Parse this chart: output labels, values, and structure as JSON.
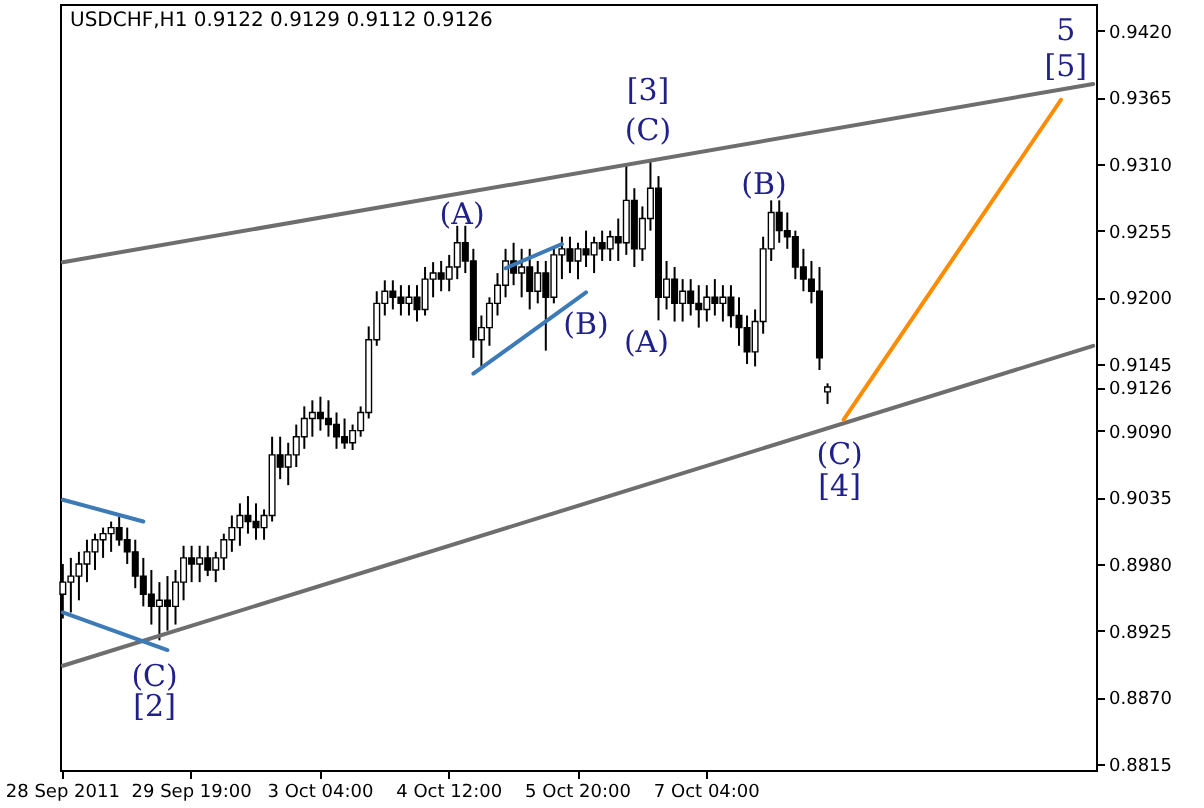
{
  "chart_data": {
    "type": "candlestick",
    "title": "USDCHF,H1  0.9122 0.9129 0.9112 0.9126",
    "categories": [
      "28 Sep 2011",
      null,
      null,
      null,
      null,
      null,
      null,
      null,
      null,
      null,
      null,
      null,
      null,
      null,
      null,
      null,
      "29 Sep 19:00",
      null,
      null,
      null,
      null,
      null,
      null,
      null,
      null,
      null,
      null,
      null,
      null,
      null,
      null,
      null,
      "3 Oct 04:00",
      null,
      null,
      null,
      null,
      null,
      null,
      null,
      null,
      null,
      null,
      null,
      null,
      null,
      null,
      null,
      "4 Oct 12:00",
      null,
      null,
      null,
      null,
      null,
      null,
      null,
      null,
      null,
      null,
      null,
      null,
      null,
      null,
      null,
      "5 Oct 20:00",
      null,
      null,
      null,
      null,
      null,
      null,
      null,
      null,
      null,
      null,
      null,
      null,
      null,
      null,
      null,
      "7 Oct 04:00",
      null,
      null,
      null,
      null,
      null,
      null,
      null,
      null,
      null,
      null,
      null,
      null,
      null,
      null,
      null,
      null,
      null,
      null,
      null,
      null,
      null,
      null,
      null,
      null,
      null,
      null,
      null,
      null,
      null,
      null,
      null,
      null,
      null,
      null,
      null,
      null,
      null,
      null,
      null,
      null,
      null,
      null,
      null,
      null,
      null,
      null,
      null,
      null
    ],
    "ohlc": [
      [
        0.8955,
        0.898,
        0.8935,
        0.8965
      ],
      [
        0.8965,
        0.8985,
        0.894,
        0.897
      ],
      [
        0.897,
        0.899,
        0.895,
        0.898
      ],
      [
        0.898,
        0.9,
        0.8965,
        0.899
      ],
      [
        0.899,
        0.9005,
        0.8975,
        0.9
      ],
      [
        0.9,
        0.901,
        0.8985,
        0.9005
      ],
      [
        0.9005,
        0.9015,
        0.899,
        0.901
      ],
      [
        0.901,
        0.902,
        0.8995,
        0.9
      ],
      [
        0.9,
        0.901,
        0.898,
        0.899
      ],
      [
        0.899,
        0.9,
        0.896,
        0.897
      ],
      [
        0.897,
        0.8985,
        0.8945,
        0.8955
      ],
      [
        0.8955,
        0.8975,
        0.893,
        0.8945
      ],
      [
        0.8945,
        0.8965,
        0.8917,
        0.895
      ],
      [
        0.895,
        0.897,
        0.8925,
        0.8945
      ],
      [
        0.8945,
        0.8975,
        0.893,
        0.8965
      ],
      [
        0.8965,
        0.8995,
        0.895,
        0.8985
      ],
      [
        0.8985,
        0.8995,
        0.8965,
        0.898
      ],
      [
        0.898,
        0.8995,
        0.8965,
        0.8985
      ],
      [
        0.8985,
        0.8995,
        0.897,
        0.8975
      ],
      [
        0.8975,
        0.899,
        0.8965,
        0.8985
      ],
      [
        0.8985,
        0.9005,
        0.8975,
        0.9
      ],
      [
        0.9,
        0.902,
        0.899,
        0.901
      ],
      [
        0.901,
        0.903,
        0.8995,
        0.902
      ],
      [
        0.902,
        0.9036,
        0.9005,
        0.9015
      ],
      [
        0.9015,
        0.903,
        0.9,
        0.901
      ],
      [
        0.901,
        0.9025,
        0.9,
        0.902
      ],
      [
        0.902,
        0.9085,
        0.9015,
        0.907
      ],
      [
        0.907,
        0.9085,
        0.905,
        0.906
      ],
      [
        0.906,
        0.908,
        0.9045,
        0.907
      ],
      [
        0.907,
        0.9095,
        0.906,
        0.9085
      ],
      [
        0.9085,
        0.911,
        0.9075,
        0.91
      ],
      [
        0.91,
        0.9115,
        0.9085,
        0.9105
      ],
      [
        0.9105,
        0.9118,
        0.909,
        0.91
      ],
      [
        0.91,
        0.9115,
        0.9085,
        0.9095
      ],
      [
        0.9095,
        0.9105,
        0.9075,
        0.9085
      ],
      [
        0.9085,
        0.91,
        0.9075,
        0.908
      ],
      [
        0.908,
        0.9095,
        0.9074,
        0.909
      ],
      [
        0.909,
        0.911,
        0.9085,
        0.9105
      ],
      [
        0.9105,
        0.9176,
        0.91,
        0.9165
      ],
      [
        0.9165,
        0.9205,
        0.916,
        0.9195
      ],
      [
        0.9195,
        0.9214,
        0.9185,
        0.9205
      ],
      [
        0.9205,
        0.9214,
        0.919,
        0.92
      ],
      [
        0.92,
        0.921,
        0.9185,
        0.9195
      ],
      [
        0.9195,
        0.921,
        0.9185,
        0.92
      ],
      [
        0.92,
        0.921,
        0.918,
        0.919
      ],
      [
        0.919,
        0.9225,
        0.9185,
        0.9215
      ],
      [
        0.9215,
        0.9229,
        0.92,
        0.922
      ],
      [
        0.922,
        0.923,
        0.9205,
        0.9215
      ],
      [
        0.9215,
        0.9235,
        0.9205,
        0.9225
      ],
      [
        0.9225,
        0.9259,
        0.9215,
        0.9245
      ],
      [
        0.9245,
        0.9259,
        0.922,
        0.923
      ],
      [
        0.923,
        0.924,
        0.915,
        0.9165
      ],
      [
        0.9165,
        0.9185,
        0.9143,
        0.9175
      ],
      [
        0.9175,
        0.92,
        0.916,
        0.9195
      ],
      [
        0.9195,
        0.922,
        0.9185,
        0.921
      ],
      [
        0.921,
        0.924,
        0.92,
        0.923
      ],
      [
        0.923,
        0.9245,
        0.921,
        0.922
      ],
      [
        0.922,
        0.924,
        0.92,
        0.9225
      ],
      [
        0.9225,
        0.924,
        0.919,
        0.9205
      ],
      [
        0.9205,
        0.923,
        0.9195,
        0.922
      ],
      [
        0.922,
        0.923,
        0.9156,
        0.92
      ],
      [
        0.92,
        0.924,
        0.9195,
        0.9235
      ],
      [
        0.9235,
        0.925,
        0.9215,
        0.924
      ],
      [
        0.924,
        0.925,
        0.922,
        0.923
      ],
      [
        0.923,
        0.9245,
        0.9215,
        0.924
      ],
      [
        0.924,
        0.9255,
        0.9225,
        0.9235
      ],
      [
        0.9235,
        0.925,
        0.922,
        0.9245
      ],
      [
        0.9245,
        0.9255,
        0.923,
        0.924
      ],
      [
        0.924,
        0.9255,
        0.923,
        0.925
      ],
      [
        0.925,
        0.9265,
        0.923,
        0.9245
      ],
      [
        0.9245,
        0.931,
        0.9235,
        0.928
      ],
      [
        0.928,
        0.929,
        0.9225,
        0.924
      ],
      [
        0.924,
        0.9275,
        0.923,
        0.9265
      ],
      [
        0.9265,
        0.9313,
        0.9255,
        0.929
      ],
      [
        0.929,
        0.93,
        0.9181,
        0.92
      ],
      [
        0.92,
        0.923,
        0.919,
        0.9215
      ],
      [
        0.9215,
        0.9225,
        0.918,
        0.9195
      ],
      [
        0.9195,
        0.9215,
        0.918,
        0.9205
      ],
      [
        0.9205,
        0.9215,
        0.9185,
        0.9195
      ],
      [
        0.9195,
        0.921,
        0.9175,
        0.919
      ],
      [
        0.919,
        0.921,
        0.918,
        0.92
      ],
      [
        0.92,
        0.9215,
        0.9185,
        0.9195
      ],
      [
        0.9195,
        0.921,
        0.918,
        0.92
      ],
      [
        0.92,
        0.921,
        0.9175,
        0.9185
      ],
      [
        0.9185,
        0.92,
        0.916,
        0.9175
      ],
      [
        0.9175,
        0.9185,
        0.9145,
        0.9155
      ],
      [
        0.9155,
        0.919,
        0.9143,
        0.918
      ],
      [
        0.918,
        0.925,
        0.917,
        0.924
      ],
      [
        0.924,
        0.928,
        0.923,
        0.927
      ],
      [
        0.927,
        0.928,
        0.9245,
        0.9255
      ],
      [
        0.9255,
        0.927,
        0.924,
        0.925
      ],
      [
        0.925,
        0.9255,
        0.9215,
        0.9225
      ],
      [
        0.9225,
        0.924,
        0.9205,
        0.9215
      ],
      [
        0.9215,
        0.923,
        0.9195,
        0.9205
      ],
      [
        0.9205,
        0.9225,
        0.914,
        0.915
      ],
      [
        0.9122,
        0.9129,
        0.9112,
        0.9126
      ],
      null,
      null,
      null,
      null,
      null,
      null,
      null,
      null,
      null,
      null,
      null,
      null,
      null,
      null,
      null,
      null,
      null,
      null,
      null,
      null,
      null,
      null,
      null,
      null,
      null,
      null,
      null,
      null,
      null,
      null,
      null,
      null,
      null
    ],
    "series": [
      {
        "type": "line",
        "color": "#6e6e6e",
        "values": [
          0.9229,
          null,
          null,
          null,
          null,
          null,
          null,
          null,
          null,
          null,
          null,
          null,
          null,
          null,
          null,
          null,
          null,
          null,
          null,
          null,
          null,
          null,
          null,
          null,
          null,
          null,
          null,
          null,
          null,
          null,
          null,
          null,
          null,
          null,
          null,
          null,
          null,
          null,
          null,
          null,
          null,
          null,
          null,
          null,
          null,
          null,
          null,
          null,
          null,
          null,
          null,
          null,
          null,
          null,
          null,
          null,
          null,
          null,
          null,
          null,
          null,
          null,
          null,
          null,
          null,
          null,
          null,
          null,
          null,
          null,
          null,
          null,
          null,
          null,
          null,
          null,
          null,
          null,
          null,
          null,
          null,
          null,
          null,
          null,
          null,
          null,
          null,
          null,
          null,
          null,
          null,
          null,
          null,
          null,
          null,
          null,
          null,
          null,
          null,
          null,
          null,
          null,
          null,
          null,
          null,
          null,
          null,
          null,
          null,
          null,
          null,
          null,
          null,
          null,
          null,
          null,
          null,
          null,
          null,
          null,
          null,
          null,
          null,
          null,
          null,
          null,
          null,
          null,
          0.9376
        ]
      },
      {
        "type": "line",
        "color": "#6e6e6e",
        "values": [
          0.8896,
          null,
          null,
          null,
          null,
          null,
          null,
          null,
          null,
          null,
          null,
          null,
          null,
          null,
          null,
          null,
          null,
          null,
          null,
          null,
          null,
          null,
          null,
          null,
          null,
          null,
          null,
          null,
          null,
          null,
          null,
          null,
          null,
          null,
          null,
          null,
          null,
          null,
          null,
          null,
          null,
          null,
          null,
          null,
          null,
          null,
          null,
          null,
          null,
          null,
          null,
          null,
          null,
          null,
          null,
          null,
          null,
          null,
          null,
          null,
          null,
          null,
          null,
          null,
          null,
          null,
          null,
          null,
          null,
          null,
          null,
          null,
          null,
          null,
          null,
          null,
          null,
          null,
          null,
          null,
          null,
          null,
          null,
          null,
          null,
          null,
          null,
          null,
          null,
          null,
          null,
          null,
          null,
          null,
          null,
          null,
          null,
          null,
          null,
          null,
          null,
          null,
          null,
          null,
          null,
          null,
          null,
          null,
          null,
          null,
          null,
          null,
          null,
          null,
          null,
          null,
          null,
          null,
          null,
          null,
          null,
          null,
          null,
          null,
          null,
          null,
          null,
          null,
          0.916
        ]
      },
      {
        "type": "line",
        "color": "#3d7ab8",
        "values": [
          0.9033,
          null,
          null,
          null,
          null,
          null,
          null,
          null,
          null,
          null,
          0.9015,
          null,
          null,
          null,
          null,
          null,
          null,
          null,
          null,
          null,
          null,
          null,
          null,
          null,
          null,
          null,
          null,
          null,
          null,
          null,
          null,
          null,
          null,
          null,
          null,
          null,
          null,
          null,
          null,
          null,
          null,
          null,
          null,
          null,
          null,
          null,
          null,
          null,
          null,
          null,
          null,
          null,
          null,
          null,
          null,
          null,
          null,
          null,
          null,
          null,
          null,
          null,
          null,
          null,
          null,
          null,
          null,
          null,
          null,
          null,
          null,
          null,
          null,
          null,
          null,
          null,
          null,
          null,
          null,
          null,
          null,
          null,
          null,
          null,
          null,
          null,
          null,
          null,
          null,
          null,
          null,
          null,
          null,
          null,
          null,
          null,
          null,
          null,
          null,
          null,
          null,
          null,
          null,
          null,
          null,
          null,
          null,
          null,
          null,
          null,
          null,
          null,
          null,
          null,
          null,
          null,
          null,
          null,
          null,
          null,
          null,
          null,
          null,
          null,
          null,
          null,
          null,
          null,
          null
        ]
      },
      {
        "type": "line",
        "color": "#3d7ab8",
        "values": [
          0.894,
          null,
          null,
          null,
          null,
          null,
          null,
          null,
          null,
          null,
          null,
          null,
          null,
          0.8909,
          null,
          null,
          null,
          null,
          null,
          null,
          null,
          null,
          null,
          null,
          null,
          null,
          null,
          null,
          null,
          null,
          null,
          null,
          null,
          null,
          null,
          null,
          null,
          null,
          null,
          null,
          null,
          null,
          null,
          null,
          null,
          null,
          null,
          null,
          null,
          null,
          null,
          null,
          null,
          null,
          null,
          null,
          null,
          null,
          null,
          null,
          null,
          null,
          null,
          null,
          null,
          null,
          null,
          null,
          null,
          null,
          null,
          null,
          null,
          null,
          null,
          null,
          null,
          null,
          null,
          null,
          null,
          null,
          null,
          null,
          null,
          null,
          null,
          null,
          null,
          null,
          null,
          null,
          null,
          null,
          null,
          null,
          null,
          null,
          null,
          null,
          null,
          null,
          null,
          null,
          null,
          null,
          null,
          null,
          null,
          null,
          null,
          null,
          null,
          null,
          null,
          null,
          null,
          null,
          null,
          null,
          null,
          null,
          null,
          null,
          null,
          null,
          null,
          null,
          null
        ]
      },
      {
        "type": "line",
        "color": "#3d7ab8",
        "values": [
          null,
          null,
          null,
          null,
          null,
          null,
          null,
          null,
          null,
          null,
          null,
          null,
          null,
          null,
          null,
          null,
          null,
          null,
          null,
          null,
          null,
          null,
          null,
          null,
          null,
          null,
          null,
          null,
          null,
          null,
          null,
          null,
          null,
          null,
          null,
          null,
          null,
          null,
          null,
          null,
          null,
          null,
          null,
          null,
          null,
          null,
          null,
          null,
          null,
          null,
          null,
          null,
          null,
          null,
          null,
          0.9224,
          null,
          null,
          null,
          null,
          null,
          null,
          0.9244,
          null,
          null,
          null,
          null,
          null,
          null,
          null,
          null,
          null,
          null,
          null,
          null,
          null,
          null,
          null,
          null,
          null,
          null,
          null,
          null,
          null,
          null,
          null,
          null,
          null,
          null,
          null,
          null,
          null,
          null,
          null,
          null,
          null,
          null,
          null,
          null,
          null,
          null,
          null,
          null,
          null,
          null,
          null,
          null,
          null,
          null,
          null,
          null,
          null,
          null,
          null,
          null,
          null,
          null,
          null,
          null,
          null,
          null,
          null,
          null,
          null,
          null,
          null,
          null,
          null,
          null
        ]
      },
      {
        "type": "line",
        "color": "#3d7ab8",
        "values": [
          null,
          null,
          null,
          null,
          null,
          null,
          null,
          null,
          null,
          null,
          null,
          null,
          null,
          null,
          null,
          null,
          null,
          null,
          null,
          null,
          null,
          null,
          null,
          null,
          null,
          null,
          null,
          null,
          null,
          null,
          null,
          null,
          null,
          null,
          null,
          null,
          null,
          null,
          null,
          null,
          null,
          null,
          null,
          null,
          null,
          null,
          null,
          null,
          null,
          null,
          null,
          0.9137,
          null,
          null,
          null,
          null,
          null,
          null,
          null,
          null,
          null,
          null,
          null,
          null,
          null,
          0.9204,
          null,
          null,
          null,
          null,
          null,
          null,
          null,
          null,
          null,
          null,
          null,
          null,
          null,
          null,
          null,
          null,
          null,
          null,
          null,
          null,
          null,
          null,
          null,
          null,
          null,
          null,
          null,
          null,
          null,
          null,
          null,
          null,
          null,
          null,
          null,
          null,
          null,
          null,
          null,
          null,
          null,
          null,
          null,
          null,
          null,
          null,
          null,
          null,
          null,
          null,
          null,
          null,
          null,
          null,
          null,
          null,
          null,
          null,
          null,
          null,
          null,
          null,
          null
        ]
      },
      {
        "type": "line",
        "color": "#ff8c00",
        "values": [
          null,
          null,
          null,
          null,
          null,
          null,
          null,
          null,
          null,
          null,
          null,
          null,
          null,
          null,
          null,
          null,
          null,
          null,
          null,
          null,
          null,
          null,
          null,
          null,
          null,
          null,
          null,
          null,
          null,
          null,
          null,
          null,
          null,
          null,
          null,
          null,
          null,
          null,
          null,
          null,
          null,
          null,
          null,
          null,
          null,
          null,
          null,
          null,
          null,
          null,
          null,
          null,
          null,
          null,
          null,
          null,
          null,
          null,
          null,
          null,
          null,
          null,
          null,
          null,
          null,
          null,
          null,
          null,
          null,
          null,
          null,
          null,
          null,
          null,
          null,
          null,
          null,
          null,
          null,
          null,
          null,
          null,
          null,
          null,
          null,
          null,
          null,
          null,
          null,
          null,
          null,
          null,
          null,
          null,
          null,
          null,
          null,
          0.9099,
          null,
          null,
          null,
          null,
          null,
          null,
          null,
          null,
          null,
          null,
          null,
          null,
          null,
          null,
          null,
          null,
          null,
          null,
          null,
          null,
          null,
          null,
          null,
          null,
          null,
          null,
          0.9363,
          null,
          null,
          null,
          null
        ]
      }
    ],
    "annotations": [
      {
        "text": "(C)",
        "y": 0.8917
      },
      "[2]",
      {
        "text": "(A)",
        "y": 0.9259
      },
      "(B)",
      "(C)",
      "[3]",
      "(A)",
      "(B)",
      "(C)",
      "[4]",
      "5",
      "[5]"
    ],
    "ylim": [
      0.881,
      0.9442
    ],
    "yticks": [
      {
        "value": 0.942,
        "label": "0.9420"
      },
      0.9365,
      {
        "value": 0.931,
        "label": "0.9310"
      },
      0.9255,
      {
        "value": 0.92,
        "label": "0.9200"
      },
      0.9145,
      0.9126,
      {
        "value": 0.909,
        "label": "0.9090"
      },
      0.9035,
      {
        "value": 0.898,
        "label": "0.8980"
      },
      0.8925,
      {
        "value": 0.887,
        "label": "0.8870"
      },
      0.8815
    ]
  }
}
